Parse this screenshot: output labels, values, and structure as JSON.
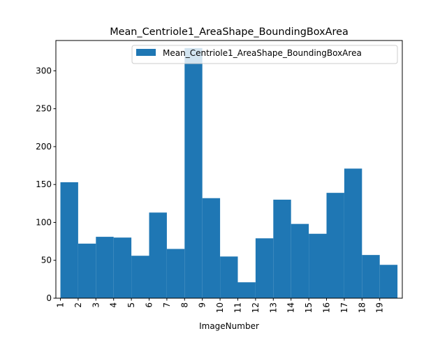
{
  "chart_data": {
    "type": "bar",
    "title": "Mean_Centriole1_AreaShape_BoundingBoxArea",
    "xlabel": "ImageNumber",
    "ylabel": "",
    "categories": [
      "1",
      "2",
      "3",
      "4",
      "5",
      "6",
      "7",
      "8",
      "9",
      "10",
      "11",
      "12",
      "13",
      "14",
      "15",
      "16",
      "17",
      "18",
      "19"
    ],
    "series": [
      {
        "name": "Mean_Centriole1_AreaShape_BoundingBoxArea",
        "color": "#1f77b4",
        "values": [
          153,
          72,
          81,
          80,
          56,
          113,
          65,
          330,
          132,
          55,
          21,
          79,
          130,
          98,
          85,
          139,
          171,
          57,
          44
        ]
      }
    ],
    "ylim": [
      0,
      340
    ],
    "yticks": [
      0,
      50,
      100,
      150,
      200,
      250,
      300
    ],
    "legend_position": "top-right",
    "grid": false
  }
}
